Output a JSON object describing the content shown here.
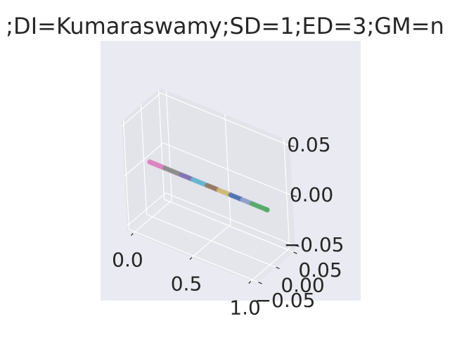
{
  "chart_data": {
    "type": "scatter",
    "projection": "3d",
    "title": ";DI=Kumaraswamy;SD=1;ED=3;GM=n",
    "xlabel": "",
    "ylabel": "",
    "zlabel": "",
    "xlim": [
      -0.05,
      1.05
    ],
    "ylim": [
      -0.055,
      0.055
    ],
    "zlim": [
      -0.055,
      0.055
    ],
    "x_ticks": [
      {
        "value": 0.0,
        "label": "0.0"
      },
      {
        "value": 0.5,
        "label": "0.5"
      },
      {
        "value": 1.0,
        "label": "1.0"
      }
    ],
    "y_ticks": [
      {
        "value": -0.05,
        "label": "−0.05"
      },
      {
        "value": 0.0,
        "label": "0.00"
      },
      {
        "value": 0.05,
        "label": "0.05"
      }
    ],
    "z_ticks": [
      {
        "value": -0.05,
        "label": "−0.05"
      },
      {
        "value": 0.0,
        "label": "0.00"
      },
      {
        "value": 0.05,
        "label": "0.05"
      }
    ],
    "grid": true,
    "series": [
      {
        "color": "#dd84c0",
        "x": [
          0.0,
          0.01,
          0.02,
          0.03,
          0.04,
          0.05,
          0.06,
          0.07,
          0.08,
          0.09,
          0.1,
          0.11,
          0.12
        ],
        "y": [
          0,
          0,
          0,
          0,
          0,
          0,
          0,
          0,
          0,
          0,
          0,
          0,
          0
        ],
        "z": [
          0,
          0,
          0,
          0,
          0,
          0,
          0,
          0,
          0,
          0,
          0,
          0,
          0
        ]
      },
      {
        "color": "#8c8c8c",
        "x": [
          0.13,
          0.15,
          0.17,
          0.19,
          0.21,
          0.23,
          0.25
        ],
        "y": [
          0,
          0,
          0,
          0,
          0,
          0,
          0
        ],
        "z": [
          0,
          0,
          0,
          0,
          0,
          0,
          0
        ]
      },
      {
        "color": "#8172b3",
        "x": [
          0.27,
          0.29,
          0.31,
          0.33,
          0.35
        ],
        "y": [
          0,
          0,
          0,
          0,
          0
        ],
        "z": [
          0,
          0,
          0,
          0,
          0
        ]
      },
      {
        "color": "#64b5cd",
        "x": [
          0.37,
          0.39,
          0.41,
          0.43,
          0.45,
          0.47
        ],
        "y": [
          0,
          0,
          0,
          0,
          0,
          0
        ],
        "z": [
          0,
          0,
          0,
          0,
          0,
          0
        ]
      },
      {
        "color": "#937860",
        "x": [
          0.49,
          0.51,
          0.53,
          0.55,
          0.57
        ],
        "y": [
          0,
          0,
          0,
          0,
          0
        ],
        "z": [
          0,
          0,
          0,
          0,
          0
        ]
      },
      {
        "color": "#ccb974",
        "x": [
          0.59,
          0.61,
          0.63,
          0.65,
          0.67
        ],
        "y": [
          0,
          0,
          0,
          0,
          0
        ],
        "z": [
          0,
          0,
          0,
          0,
          0
        ]
      },
      {
        "color": "#4c72b0",
        "x": [
          0.69,
          0.71,
          0.73,
          0.75,
          0.77
        ],
        "y": [
          0,
          0,
          0,
          0,
          0
        ],
        "z": [
          0,
          0,
          0,
          0,
          0
        ]
      },
      {
        "color": "#8da0cb",
        "x": [
          0.79,
          0.81,
          0.83,
          0.85
        ],
        "y": [
          0,
          0,
          0,
          0
        ],
        "z": [
          0,
          0,
          0,
          0
        ]
      },
      {
        "color": "#55a868",
        "x": [
          0.87,
          0.89,
          0.91,
          0.93,
          0.95,
          0.97,
          0.99,
          1.0
        ],
        "y": [
          0,
          0,
          0,
          0,
          0,
          0,
          0,
          0
        ],
        "z": [
          0,
          0,
          0,
          0,
          0,
          0,
          0,
          0
        ]
      }
    ],
    "colors": {
      "axes_background": "#eaeaf2",
      "pane_floor": "#e5e5ec",
      "pane_side": "#e3e3ea",
      "grid": "#ffffff",
      "text": "#262626"
    }
  }
}
